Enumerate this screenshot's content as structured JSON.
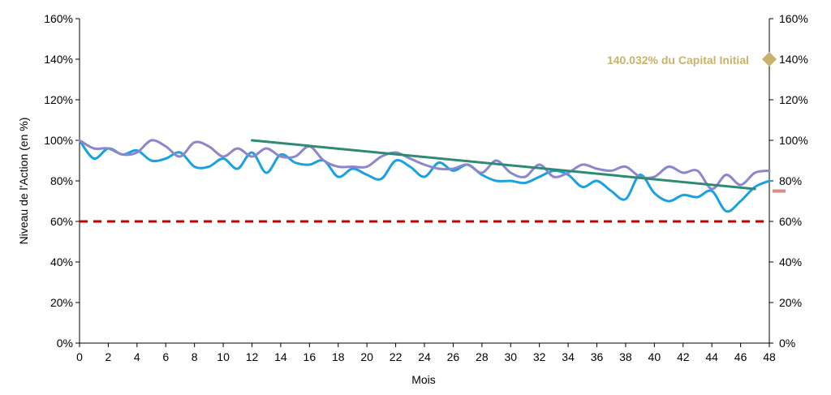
{
  "chart_data": {
    "type": "line",
    "xlabel": "Mois",
    "ylabel": "Niveau de l'Action (en %)",
    "xlim": [
      0,
      48
    ],
    "ylim": [
      0,
      160
    ],
    "x_ticks": [
      0,
      2,
      4,
      6,
      8,
      10,
      12,
      14,
      16,
      18,
      20,
      22,
      24,
      26,
      28,
      30,
      32,
      34,
      36,
      38,
      40,
      42,
      44,
      46,
      48
    ],
    "y_ticks_left": [
      "0%",
      "20%",
      "40%",
      "60%",
      "80%",
      "100%",
      "120%",
      "140%",
      "160%"
    ],
    "y_ticks_right": [
      "0%",
      "20%",
      "40%",
      "60%",
      "80%",
      "100%",
      "120%",
      "140%",
      "160%"
    ],
    "grid": false,
    "series": [
      {
        "kind": "line",
        "color": "#1BA1DF",
        "x": [
          0,
          1,
          2,
          3,
          4,
          5,
          6,
          7,
          8,
          9,
          10,
          11,
          12,
          13,
          14,
          15,
          16,
          17,
          18,
          19,
          20,
          21,
          22,
          23,
          24,
          25,
          26,
          27,
          28,
          29,
          30,
          31,
          32,
          33,
          34,
          35,
          36,
          37,
          38,
          39,
          40,
          41,
          42,
          43,
          44,
          45,
          46,
          47,
          48
        ],
        "values": [
          100,
          91,
          96,
          93,
          95,
          90,
          91,
          94,
          87,
          87,
          91,
          86,
          94,
          84,
          93,
          89,
          88,
          90,
          82,
          86,
          83,
          81,
          90,
          87,
          82,
          89,
          85,
          88,
          83,
          80,
          80,
          79,
          82,
          85,
          83,
          77,
          80,
          75,
          71,
          83,
          74,
          70,
          73,
          72,
          75,
          65,
          70,
          77,
          80
        ]
      },
      {
        "kind": "line",
        "color": "#8C86CC",
        "x": [
          0,
          1,
          2,
          3,
          4,
          5,
          6,
          7,
          8,
          9,
          10,
          11,
          12,
          13,
          14,
          15,
          16,
          17,
          18,
          19,
          20,
          21,
          22,
          23,
          24,
          25,
          26,
          27,
          28,
          29,
          30,
          31,
          32,
          33,
          34,
          35,
          36,
          37,
          38,
          39,
          40,
          41,
          42,
          43,
          44,
          45,
          46,
          47,
          48
        ],
        "values": [
          100,
          96,
          96,
          93,
          94,
          100,
          97,
          92,
          99,
          97,
          92,
          96,
          92,
          96,
          92,
          92,
          97,
          90,
          87,
          87,
          87,
          92,
          94,
          91,
          88,
          86,
          86,
          88,
          84,
          90,
          84,
          82,
          88,
          82,
          84,
          88,
          86,
          85,
          87,
          82,
          82,
          87,
          84,
          85,
          76,
          83,
          78,
          84,
          85
        ]
      },
      {
        "kind": "line",
        "color": "#2E8B73",
        "x": [
          12,
          47
        ],
        "values": [
          100,
          76
        ]
      },
      {
        "kind": "reference",
        "color": "#C00000",
        "y": 60,
        "dashed": true
      }
    ],
    "markers": [
      {
        "kind": "diamond",
        "color": "#C9B26B",
        "x": 48,
        "y": 140
      },
      {
        "kind": "dash",
        "color": "#D98C85",
        "x": 48,
        "y": 75
      }
    ],
    "annotations": [
      {
        "text": "140.032% du Capital Initial",
        "color": "#C9B26B",
        "x": 48,
        "y": 140
      }
    ]
  }
}
